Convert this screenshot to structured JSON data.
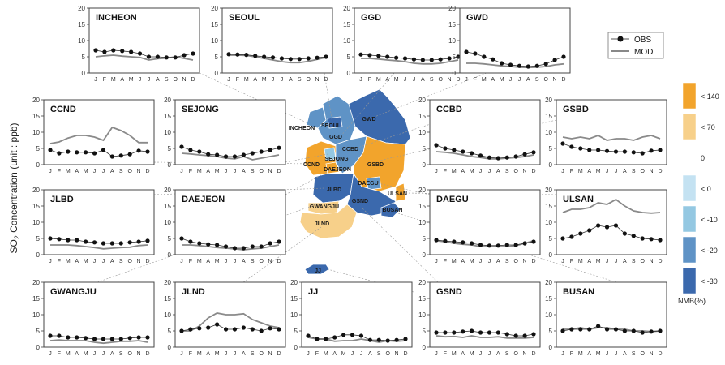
{
  "figure": {
    "y_axis_label_prefix": "SO",
    "y_axis_label_sub": "2",
    "y_axis_label_suffix": " Concentration (unit : ppb)"
  },
  "legend": {
    "obs_label": "OBS",
    "mod_label": "MOD"
  },
  "colorbar": {
    "title": "NMB(%)",
    "items": [
      {
        "label": "< 140",
        "color": "#f2a42c"
      },
      {
        "label": "< 70",
        "color": "#f7d08a"
      },
      {
        "label": "0",
        "color": "#ffffff"
      },
      {
        "label": "< 0",
        "color": "#c4e2f2"
      },
      {
        "label": "< -10",
        "color": "#94c8e2"
      },
      {
        "label": "< -20",
        "color": "#5f93c6"
      },
      {
        "label": "< -30",
        "color": "#3b69ad"
      }
    ]
  },
  "map_labels": [
    "INCHEON",
    "SEOUL",
    "GGD",
    "GWD",
    "CCND",
    "SEJONG",
    "CCBD",
    "GSBD",
    "DAEJEON",
    "DAEGU",
    "ULSAN",
    "JLBD",
    "GSND",
    "BUSAN",
    "GWANGJU",
    "JLND",
    "JJ"
  ],
  "chart_data": {
    "type": "line",
    "months": [
      "J",
      "F",
      "M",
      "A",
      "M",
      "J",
      "J",
      "A",
      "S",
      "O",
      "N",
      "D"
    ],
    "ylim": [
      0,
      20
    ],
    "yticks": [
      0,
      5,
      10,
      15,
      20
    ],
    "panels": [
      {
        "name": "INCHEON",
        "obs": [
          7.0,
          6.5,
          7.0,
          6.8,
          6.5,
          6.0,
          5.0,
          5.0,
          4.8,
          4.8,
          5.5,
          6.0
        ],
        "mod": [
          5.0,
          5.3,
          5.5,
          5.2,
          5.0,
          4.8,
          4.0,
          4.4,
          4.6,
          5.0,
          4.5,
          4.0
        ]
      },
      {
        "name": "SEOUL",
        "obs": [
          5.8,
          5.7,
          5.6,
          5.3,
          5.0,
          4.8,
          4.5,
          4.3,
          4.3,
          4.5,
          4.7,
          5.0
        ],
        "mod": [
          5.5,
          5.5,
          5.4,
          5.0,
          4.5,
          4.0,
          3.5,
          3.2,
          3.2,
          3.6,
          4.2,
          4.8
        ]
      },
      {
        "name": "GGD",
        "obs": [
          5.7,
          5.5,
          5.3,
          5.0,
          4.7,
          4.5,
          4.2,
          4.0,
          4.0,
          4.2,
          4.5,
          5.0
        ],
        "mod": [
          4.5,
          4.5,
          4.3,
          4.0,
          3.8,
          3.5,
          3.0,
          2.8,
          2.8,
          3.0,
          3.5,
          4.0
        ]
      },
      {
        "name": "GWD",
        "obs": [
          6.5,
          6.0,
          5.0,
          4.2,
          3.0,
          2.5,
          2.2,
          2.0,
          2.2,
          2.8,
          4.0,
          5.0
        ],
        "mod": [
          3.0,
          3.0,
          2.8,
          2.5,
          2.2,
          2.0,
          1.8,
          1.7,
          1.8,
          2.0,
          2.5,
          2.8
        ]
      },
      {
        "name": "CCND",
        "obs": [
          4.5,
          3.5,
          4.0,
          3.8,
          3.8,
          3.5,
          4.5,
          2.5,
          2.8,
          3.2,
          4.3,
          4.0
        ],
        "mod": [
          6.5,
          7.0,
          8.2,
          9.0,
          9.0,
          8.5,
          7.5,
          11.5,
          10.5,
          9.0,
          6.8,
          6.8
        ]
      },
      {
        "name": "SEJONG",
        "obs": [
          5.5,
          4.5,
          4.0,
          3.2,
          3.0,
          2.5,
          2.5,
          3.0,
          3.5,
          4.0,
          4.5,
          5.2
        ],
        "mod": [
          3.5,
          3.3,
          3.0,
          2.8,
          2.5,
          2.0,
          1.8,
          2.5,
          1.5,
          2.0,
          2.5,
          3.0
        ]
      },
      {
        "name": "CCBD",
        "obs": [
          6.0,
          5.0,
          4.5,
          4.0,
          3.5,
          2.8,
          2.2,
          2.0,
          2.2,
          2.5,
          3.2,
          3.8
        ],
        "mod": [
          4.0,
          3.8,
          3.5,
          3.0,
          2.5,
          2.2,
          1.8,
          1.8,
          2.0,
          2.2,
          2.5,
          3.0
        ]
      },
      {
        "name": "GSBD",
        "obs": [
          6.5,
          5.5,
          5.0,
          4.5,
          4.5,
          4.2,
          4.0,
          4.0,
          3.8,
          3.5,
          4.3,
          4.5
        ],
        "mod": [
          8.5,
          8.0,
          8.5,
          8.0,
          9.0,
          7.5,
          8.0,
          8.0,
          7.5,
          8.5,
          9.0,
          8.0
        ]
      },
      {
        "name": "JLBD",
        "obs": [
          5.0,
          4.8,
          4.5,
          4.5,
          4.0,
          3.8,
          3.5,
          3.5,
          3.5,
          3.8,
          4.0,
          4.3
        ],
        "mod": [
          3.0,
          3.0,
          3.0,
          2.8,
          2.5,
          2.2,
          1.8,
          2.0,
          2.2,
          2.3,
          2.8,
          3.0
        ]
      },
      {
        "name": "DAEJEON",
        "obs": [
          5.0,
          4.0,
          3.5,
          3.2,
          3.0,
          2.5,
          2.0,
          2.0,
          2.5,
          2.5,
          3.5,
          4.0
        ],
        "mod": [
          3.0,
          3.0,
          2.8,
          2.5,
          2.2,
          2.0,
          1.8,
          1.5,
          1.8,
          2.0,
          2.5,
          3.0
        ]
      },
      {
        "name": "DAEGU",
        "obs": [
          4.5,
          4.2,
          4.0,
          3.8,
          3.5,
          3.0,
          2.8,
          2.8,
          3.0,
          3.0,
          3.5,
          4.0
        ],
        "mod": [
          4.3,
          4.0,
          3.5,
          3.2,
          3.0,
          2.5,
          2.5,
          2.5,
          2.5,
          2.8,
          3.5,
          4.3
        ]
      },
      {
        "name": "ULSAN",
        "obs": [
          5.0,
          5.5,
          6.5,
          7.5,
          9.0,
          8.5,
          9.0,
          6.5,
          5.8,
          5.0,
          4.8,
          4.5
        ],
        "mod": [
          13.0,
          14.0,
          14.0,
          14.5,
          16.0,
          15.5,
          17.0,
          15.0,
          13.5,
          13.0,
          12.8,
          13.0
        ]
      },
      {
        "name": "GWANGJU",
        "obs": [
          3.5,
          3.5,
          3.0,
          3.0,
          2.8,
          2.5,
          2.5,
          2.5,
          2.5,
          2.8,
          3.0,
          3.0
        ],
        "mod": [
          2.0,
          2.2,
          2.0,
          2.0,
          2.0,
          1.5,
          1.2,
          1.5,
          1.8,
          1.8,
          2.0,
          1.5
        ]
      },
      {
        "name": "JLND",
        "obs": [
          5.0,
          5.5,
          5.8,
          6.0,
          7.0,
          5.5,
          5.5,
          6.0,
          5.5,
          5.0,
          5.8,
          5.5
        ],
        "mod": [
          5.0,
          5.0,
          6.5,
          9.0,
          10.5,
          10.0,
          10.0,
          10.3,
          8.5,
          7.5,
          6.5,
          6.0
        ]
      },
      {
        "name": "JJ",
        "obs": [
          3.5,
          2.5,
          2.5,
          3.0,
          3.8,
          3.8,
          3.5,
          2.2,
          2.2,
          2.0,
          2.2,
          2.5
        ],
        "mod": [
          3.0,
          2.5,
          2.5,
          1.8,
          2.0,
          2.0,
          2.5,
          2.0,
          1.5,
          2.0,
          1.8,
          2.0
        ]
      },
      {
        "name": "GSND",
        "obs": [
          4.5,
          4.5,
          4.5,
          4.8,
          5.0,
          4.5,
          4.5,
          4.5,
          4.0,
          3.5,
          3.5,
          4.0
        ],
        "mod": [
          3.5,
          3.2,
          3.3,
          3.0,
          3.5,
          3.0,
          3.0,
          3.2,
          2.8,
          2.8,
          2.8,
          3.0
        ]
      },
      {
        "name": "BUSAN",
        "obs": [
          5.0,
          5.5,
          5.5,
          5.5,
          6.5,
          5.5,
          5.5,
          5.0,
          5.0,
          4.5,
          4.8,
          5.0
        ],
        "mod": [
          5.5,
          5.5,
          6.0,
          5.5,
          6.0,
          6.0,
          5.5,
          5.5,
          5.0,
          5.0,
          4.8,
          5.0
        ]
      }
    ]
  }
}
